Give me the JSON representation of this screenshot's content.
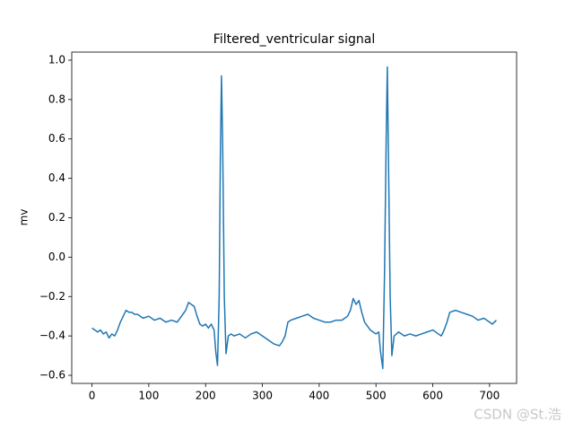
{
  "chart_data": {
    "type": "line",
    "title": "Filtered_ventricular signal",
    "ylabel": "mv",
    "color": "#1f77b4",
    "x": [
      0,
      5,
      10,
      15,
      20,
      25,
      30,
      35,
      40,
      45,
      50,
      55,
      60,
      65,
      70,
      75,
      80,
      90,
      100,
      110,
      120,
      130,
      140,
      150,
      155,
      160,
      165,
      170,
      175,
      180,
      185,
      190,
      195,
      200,
      205,
      210,
      215,
      218,
      221,
      224,
      226,
      228,
      230,
      233,
      236,
      240,
      245,
      250,
      260,
      270,
      280,
      290,
      300,
      310,
      320,
      330,
      335,
      340,
      345,
      350,
      360,
      370,
      380,
      390,
      400,
      410,
      420,
      430,
      440,
      450,
      455,
      460,
      465,
      470,
      475,
      480,
      485,
      490,
      495,
      500,
      505,
      508,
      512,
      515,
      518,
      520,
      522,
      525,
      528,
      532,
      540,
      550,
      560,
      570,
      580,
      590,
      600,
      610,
      615,
      620,
      625,
      630,
      640,
      650,
      660,
      670,
      680,
      690,
      700,
      705,
      712
    ],
    "values": [
      -0.36,
      -0.37,
      -0.38,
      -0.37,
      -0.39,
      -0.38,
      -0.41,
      -0.39,
      -0.4,
      -0.37,
      -0.33,
      -0.3,
      -0.27,
      -0.28,
      -0.28,
      -0.29,
      -0.29,
      -0.31,
      -0.3,
      -0.32,
      -0.31,
      -0.33,
      -0.32,
      -0.33,
      -0.31,
      -0.29,
      -0.27,
      -0.23,
      -0.24,
      -0.25,
      -0.3,
      -0.34,
      -0.35,
      -0.34,
      -0.36,
      -0.34,
      -0.37,
      -0.48,
      -0.55,
      -0.2,
      0.5,
      0.92,
      0.6,
      -0.2,
      -0.49,
      -0.4,
      -0.39,
      -0.4,
      -0.39,
      -0.41,
      -0.39,
      -0.38,
      -0.4,
      -0.42,
      -0.44,
      -0.45,
      -0.43,
      -0.4,
      -0.33,
      -0.32,
      -0.31,
      -0.3,
      -0.29,
      -0.31,
      -0.32,
      -0.33,
      -0.33,
      -0.32,
      -0.32,
      -0.3,
      -0.27,
      -0.21,
      -0.24,
      -0.22,
      -0.28,
      -0.33,
      -0.35,
      -0.37,
      -0.38,
      -0.39,
      -0.38,
      -0.48,
      -0.565,
      -0.1,
      0.6,
      0.965,
      0.5,
      -0.2,
      -0.5,
      -0.4,
      -0.38,
      -0.4,
      -0.39,
      -0.4,
      -0.39,
      -0.38,
      -0.37,
      -0.39,
      -0.4,
      -0.37,
      -0.33,
      -0.28,
      -0.27,
      -0.28,
      -0.29,
      -0.3,
      -0.32,
      -0.31,
      -0.33,
      -0.34,
      -0.32
    ],
    "xlim": [
      -35.6,
      747.6
    ],
    "ylim": [
      -0.641,
      1.041
    ],
    "xticks": [
      0,
      100,
      200,
      300,
      400,
      500,
      600,
      700
    ],
    "yticks": [
      {
        "value": -0.6,
        "label": "−0.6"
      },
      {
        "value": -0.4,
        "label": "−0.4"
      },
      {
        "value": -0.2,
        "label": "−0.2"
      },
      {
        "value": 0,
        "label": "0.0"
      },
      0.2,
      0.4,
      0.6,
      0.8,
      {
        "value": 1,
        "label": "1.0"
      }
    ],
    "watermark": "CSDN @St.浩"
  }
}
